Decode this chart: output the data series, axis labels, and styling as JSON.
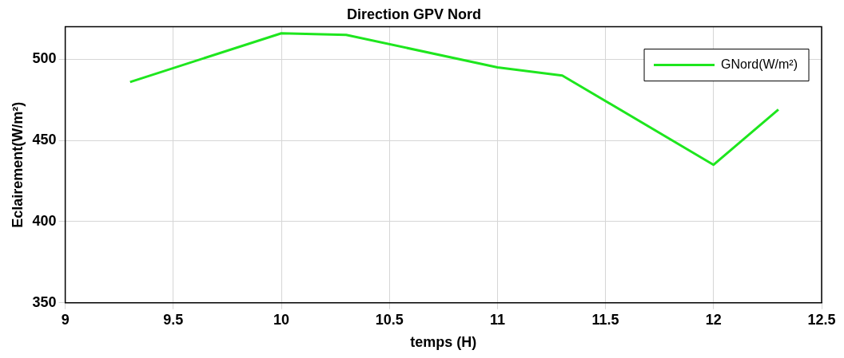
{
  "chart_data": {
    "type": "line",
    "title": "Direction GPV Nord",
    "xlabel": "temps (H)",
    "ylabel": "Eclairement(W/m²)",
    "x": [
      9.3,
      10,
      10.3,
      11,
      11.3,
      12,
      12.3
    ],
    "series": [
      {
        "name": "GNord(W/m²)",
        "color": "#1ee61e",
        "values": [
          486,
          516,
          515,
          495,
          490,
          435,
          469
        ]
      }
    ],
    "xlim": [
      9,
      12.5
    ],
    "xticks": [
      9,
      9.5,
      10,
      10.5,
      11,
      11.5,
      12,
      12.5
    ],
    "ylim": [
      350,
      520
    ],
    "yticks": [
      350,
      400,
      450,
      500
    ],
    "grid": true,
    "legend": "top right",
    "marker": "none",
    "line_style": "solid"
  }
}
